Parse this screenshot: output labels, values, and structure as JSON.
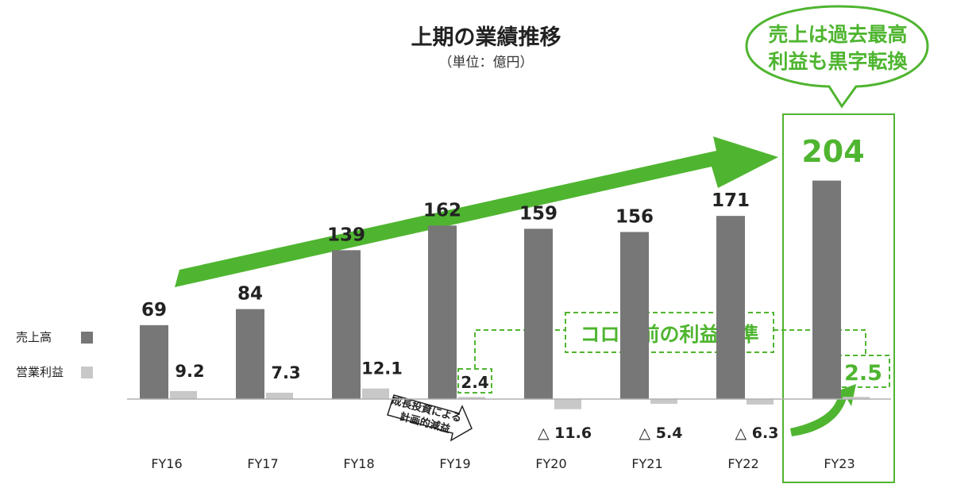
{
  "colors": {
    "sales": "#777777",
    "profit": "#c8c8c8",
    "accent": "#4fb530",
    "accent_dark": "#3a9a22",
    "text": "#222222"
  },
  "chart_data": {
    "type": "bar",
    "title": "上期の業績推移",
    "subtitle": "（単位：億円）",
    "categories": [
      "FY16",
      "FY17",
      "FY18",
      "FY19",
      "FY20",
      "FY21",
      "FY22",
      "FY23"
    ],
    "series": [
      {
        "name": "売上高",
        "values": [
          69,
          84,
          139,
          162,
          159,
          156,
          171,
          204
        ]
      },
      {
        "name": "営業利益",
        "values": [
          9.2,
          7.3,
          12.1,
          2.4,
          -11.6,
          -5.4,
          -6.3,
          2.5
        ]
      }
    ],
    "value_labels": {
      "sales": [
        "69",
        "84",
        "139",
        "162",
        "159",
        "156",
        "171",
        "204"
      ],
      "profit": [
        "9.2",
        "7.3",
        "12.1",
        "2.4",
        "△ 11.6",
        "△ 5.4",
        "△ 6.3",
        "2.5"
      ]
    },
    "legend_position": "left",
    "grid": false
  },
  "annotations": {
    "callout_line1": "売上は過去最高",
    "callout_line2": "利益も黒字転換",
    "corona_label": "コロナ前の利益水準",
    "fy19_note_line1": "成長投資による",
    "fy19_note_line2": "計画的減益"
  }
}
